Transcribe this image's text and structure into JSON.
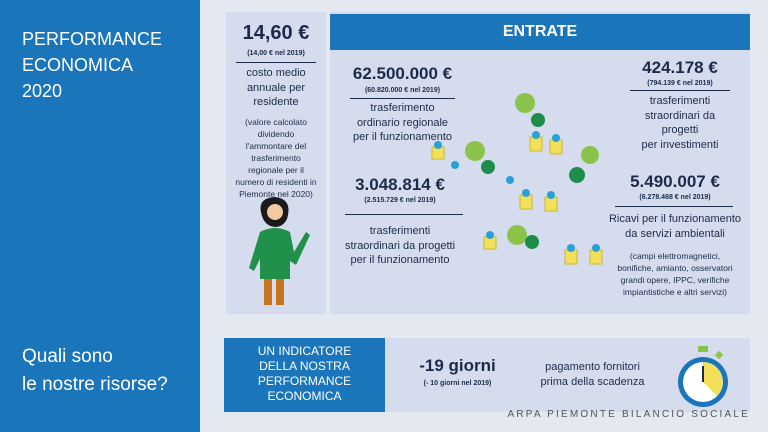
{
  "sidebar": {
    "title": [
      "PERFORMANCE",
      "ECONOMICA",
      "2020"
    ],
    "question": [
      "Quali sono",
      "le nostre risorse?"
    ]
  },
  "cost_card": {
    "value": "14,60 €",
    "previous": "(14,00 € nel 2019)",
    "label": [
      "costo medio",
      "annuale per",
      "residente"
    ],
    "note": [
      "(valore calcolato",
      "dividendo",
      "l'ammontare del",
      "trasferimento",
      "regionale per il",
      "numero  di residenti in",
      "Piemonte nel 2020)"
    ]
  },
  "entrate": {
    "header": "ENTRATE",
    "items": [
      {
        "value": "62.500.000 €",
        "previous": "(60.820.000 € nel 2019)",
        "label": [
          "trasferimento",
          "ordinario regionale",
          "per il funzionamento"
        ]
      },
      {
        "value": "424.178 €",
        "previous": "(794.139 € nel 2019)",
        "label": [
          "trasferimenti",
          "straordinari da",
          "progetti",
          "per investimenti"
        ]
      },
      {
        "value": "3.048.814 €",
        "previous": "(2.515.729 € nel 2019)",
        "label": [
          "trasferimenti",
          "straordinari da progetti",
          "per il funzionamento"
        ]
      },
      {
        "value": "5.490.007 €",
        "previous": "(6.278.468 € nel 2019)",
        "label": [
          "Ricavi per il funzionamento",
          "da servizi ambientali"
        ],
        "note": [
          "(campi elettromagnetici,",
          "bonifiche, amianto, osservatori",
          "grandi opere, IPPC, verifiche",
          "impiantistiche e altri servizi)"
        ]
      }
    ]
  },
  "indicator": {
    "box": [
      "UN INDICATORE",
      "DELLA NOSTRA",
      "PERFORMANCE",
      "ECONOMICA"
    ],
    "value": "-19 giorni",
    "previous": "(- 10 giorni nel 2019)",
    "label": [
      "pagamento fornitori",
      "prima della scadenza"
    ]
  },
  "footer": "ARPA PIEMONTE BILANCIO SOCIALE"
}
